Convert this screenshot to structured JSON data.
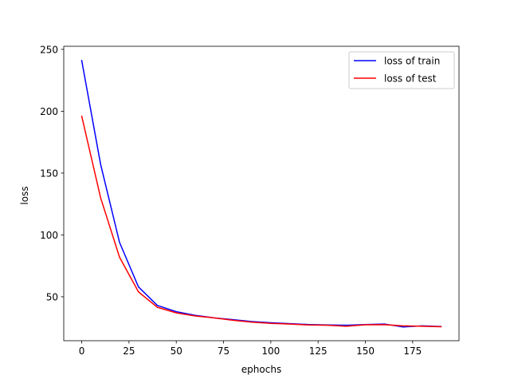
{
  "chart_data": {
    "type": "line",
    "title": "",
    "xlabel": "ephochs",
    "ylabel": "loss",
    "xlim": [
      -9.5,
      199.5
    ],
    "ylim": [
      14.5,
      252.5
    ],
    "xticks": [
      0,
      25,
      50,
      75,
      100,
      125,
      150,
      175
    ],
    "yticks": [
      50,
      100,
      150,
      200,
      250
    ],
    "grid": false,
    "legend_position": "top-right",
    "x": [
      0,
      10,
      20,
      30,
      40,
      50,
      60,
      70,
      80,
      90,
      100,
      110,
      120,
      130,
      140,
      150,
      160,
      170,
      180,
      190
    ],
    "series": [
      {
        "name": "loss of train",
        "color": "#0000ff",
        "values": [
          241,
          157,
          94,
          58,
          43,
          38,
          35,
          33,
          31.5,
          30,
          29,
          28.3,
          27.6,
          27.2,
          27,
          27.6,
          28,
          25.6,
          26.5,
          26
        ]
      },
      {
        "name": "loss of test",
        "color": "#ff0000",
        "values": [
          196,
          130,
          82,
          54,
          41.5,
          37,
          34.5,
          33,
          31,
          29.5,
          28.5,
          28,
          27.2,
          27,
          26.2,
          27.4,
          27.5,
          26.5,
          26.2,
          25.8
        ]
      }
    ]
  }
}
